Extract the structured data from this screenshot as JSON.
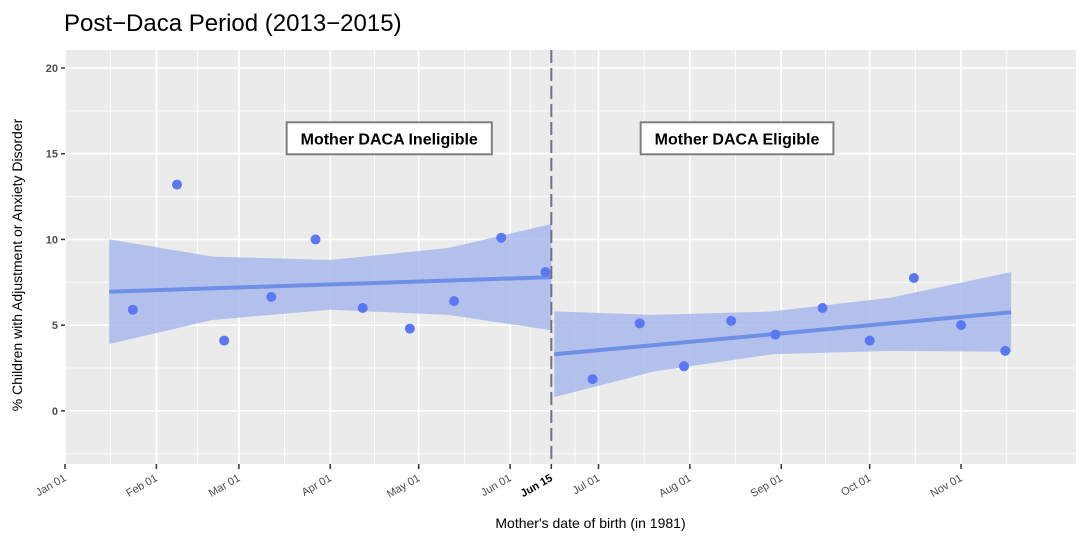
{
  "chart_data": {
    "type": "scatter",
    "title": "Post−Daca Period (2013−2015)",
    "xlabel": "Mother's date of birth (in 1981)",
    "ylabel": "% Children with Adjustment or Anxiety Disorder",
    "x_units": "day of year 1981 (0 = Jan 01)",
    "xlim": [
      0,
      343
    ],
    "ylim": [
      -3.1,
      21.05
    ],
    "grid": true,
    "y_ticks": [
      0,
      5,
      10,
      15,
      20
    ],
    "x_ticks": [
      {
        "label": "Jan 01",
        "day": 0,
        "bold": false
      },
      {
        "label": "Feb 01",
        "day": 31,
        "bold": false
      },
      {
        "label": "Mar 01",
        "day": 59,
        "bold": false
      },
      {
        "label": "Apr 01",
        "day": 90,
        "bold": false
      },
      {
        "label": "May 01",
        "day": 120,
        "bold": false
      },
      {
        "label": "Jun 01",
        "day": 151,
        "bold": false
      },
      {
        "label": "Jun 15",
        "day": 165,
        "bold": true
      },
      {
        "label": "Jul 01",
        "day": 181,
        "bold": false
      },
      {
        "label": "Aug 01",
        "day": 212,
        "bold": false
      },
      {
        "label": "Sep 01",
        "day": 243,
        "bold": false
      },
      {
        "label": "Oct 01",
        "day": 273,
        "bold": false
      },
      {
        "label": "Nov 01",
        "day": 304,
        "bold": false
      }
    ],
    "cutoff": {
      "label": "Jun 15",
      "day": 165,
      "style": "dashed"
    },
    "annotations": [
      {
        "text": "Mother DACA Ineligible",
        "x_day": 110,
        "y": 15.9
      },
      {
        "text": "Mother DACA Eligible",
        "x_day": 228,
        "y": 15.9
      }
    ],
    "series": [
      {
        "name": "Mother DACA Ineligible",
        "points": [
          {
            "x": 23,
            "y": 5.9
          },
          {
            "x": 38,
            "y": 13.2
          },
          {
            "x": 54,
            "y": 4.1
          },
          {
            "x": 70,
            "y": 6.65
          },
          {
            "x": 85,
            "y": 10.0
          },
          {
            "x": 101,
            "y": 6.0
          },
          {
            "x": 117,
            "y": 4.8
          },
          {
            "x": 132,
            "y": 6.4
          },
          {
            "x": 148,
            "y": 10.1
          },
          {
            "x": 163,
            "y": 8.1
          }
        ],
        "fit": {
          "x": [
            15,
            165
          ],
          "y": [
            6.95,
            7.8
          ],
          "ci_upper": [
            10.0,
            10.9
          ],
          "ci_lower": [
            3.9,
            4.7
          ],
          "ci_x": [
            15,
            50,
            90,
            130,
            165
          ],
          "ci_upper_curve": [
            10.0,
            9.0,
            8.8,
            9.5,
            10.9
          ],
          "ci_lower_curve": [
            3.9,
            5.3,
            5.9,
            5.6,
            4.7
          ]
        }
      },
      {
        "name": "Mother DACA Eligible",
        "points": [
          {
            "x": 179,
            "y": 1.85
          },
          {
            "x": 195,
            "y": 5.1
          },
          {
            "x": 210,
            "y": 2.6
          },
          {
            "x": 226,
            "y": 5.25
          },
          {
            "x": 241,
            "y": 4.45
          },
          {
            "x": 257,
            "y": 6.0
          },
          {
            "x": 273,
            "y": 4.1
          },
          {
            "x": 288,
            "y": 7.75
          },
          {
            "x": 304,
            "y": 5.0
          },
          {
            "x": 319,
            "y": 3.5
          }
        ],
        "fit": {
          "x": [
            166,
            321
          ],
          "y": [
            3.3,
            5.75
          ],
          "ci_x": [
            166,
            200,
            240,
            280,
            321
          ],
          "ci_upper_curve": [
            5.8,
            5.6,
            5.8,
            6.6,
            8.1
          ],
          "ci_lower_curve": [
            0.8,
            2.3,
            3.3,
            3.5,
            3.45
          ]
        }
      }
    ],
    "colors": {
      "point": "#5B77F2",
      "fit_line": "#6D8FE6",
      "ci_band": "#A9B9EC",
      "panel_bg": "#EBEBEB",
      "grid": "#FFFFFF",
      "cutoff_line": "#6E7280"
    }
  }
}
